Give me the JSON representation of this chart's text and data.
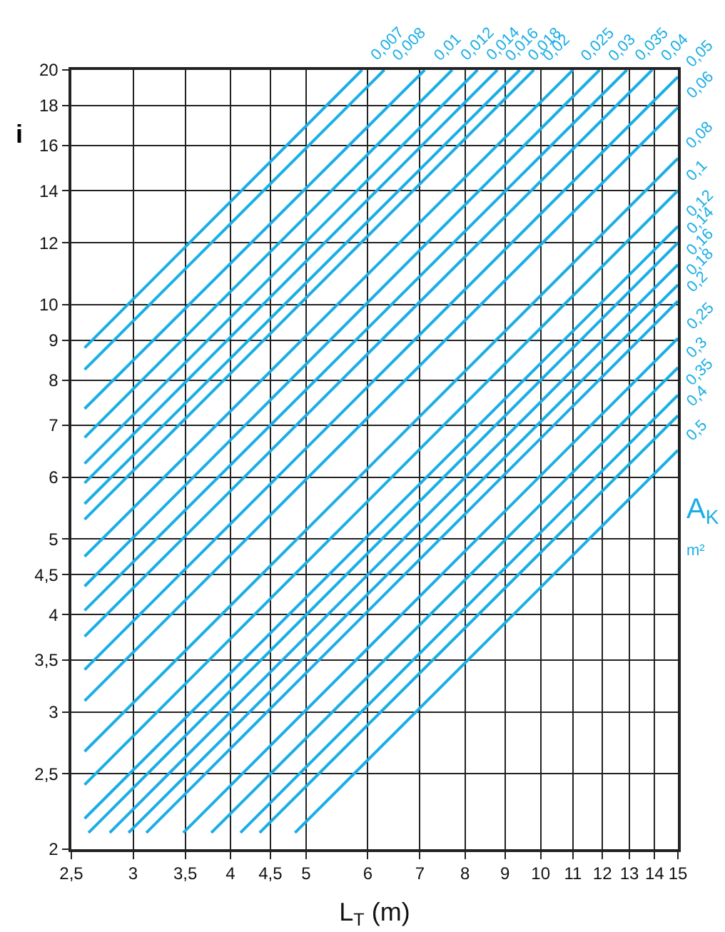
{
  "chart_data": {
    "type": "line",
    "xlabel": "L$_{T}$ (m)",
    "ylabel": "i",
    "legend_title": "A$_{K}$ m²",
    "log": "xy",
    "grid": true,
    "legend": false,
    "marker": "none",
    "line_style": "solid",
    "xlim": [
      2.5,
      15
    ],
    "ylim": [
      2,
      20
    ],
    "xticks": [
      {
        "value": 2.5,
        "label": "2,5"
      },
      3,
      {
        "value": 3.5,
        "label": "3,5"
      },
      4,
      {
        "value": 4.5,
        "label": "4,5"
      },
      5,
      6,
      7,
      8,
      9,
      10,
      11,
      12,
      13,
      14,
      15
    ],
    "yticks": [
      2,
      {
        "value": 2.5,
        "label": "2,5"
      },
      3,
      {
        "value": 3.5,
        "label": "3,5"
      },
      4,
      {
        "value": 4.5,
        "label": "4,5"
      },
      5,
      6,
      7,
      8,
      9,
      10,
      12,
      14,
      16,
      18,
      20
    ],
    "series": [
      {
        "name": "0,007",
        "color": "#1aaee5",
        "x": [
          2.6,
          5.9
        ],
        "values": [
          8.8,
          20
        ]
      },
      {
        "name": "0,008",
        "color": "#1aaee5",
        "x": [
          2.6,
          6.3
        ],
        "values": [
          8.25,
          20
        ]
      },
      {
        "name": "0,01",
        "color": "#1aaee5",
        "x": [
          2.6,
          7.1
        ],
        "values": [
          7.35,
          20
        ]
      },
      {
        "name": "0,012",
        "color": "#1aaee5",
        "x": [
          2.6,
          7.7
        ],
        "values": [
          6.75,
          20
        ]
      },
      {
        "name": "0,014",
        "color": "#1aaee5",
        "x": [
          2.6,
          8.3
        ],
        "values": [
          6.25,
          20
        ]
      },
      {
        "name": "0,016",
        "color": "#1aaee5",
        "x": [
          2.6,
          8.8
        ],
        "values": [
          5.9,
          20
        ]
      },
      {
        "name": "0,018",
        "color": "#1aaee5",
        "x": [
          2.6,
          9.4
        ],
        "values": [
          5.55,
          20
        ]
      },
      {
        "name": "0,02",
        "color": "#1aaee5",
        "x": [
          2.6,
          9.8
        ],
        "values": [
          5.3,
          20
        ]
      },
      {
        "name": "0,025",
        "color": "#1aaee5",
        "x": [
          2.6,
          11
        ],
        "values": [
          4.75,
          20
        ]
      },
      {
        "name": "0,03",
        "color": "#1aaee5",
        "x": [
          2.6,
          11.9
        ],
        "values": [
          4.35,
          20
        ]
      },
      {
        "name": "0,035",
        "color": "#1aaee5",
        "x": [
          2.6,
          12.9
        ],
        "values": [
          4.05,
          20
        ]
      },
      {
        "name": "0,04",
        "color": "#1aaee5",
        "x": [
          2.6,
          13.9
        ],
        "values": [
          3.75,
          20
        ]
      },
      {
        "name": "0,05",
        "color": "#1aaee5",
        "x": [
          2.6,
          15
        ],
        "values": [
          3.4,
          19.6
        ]
      },
      {
        "name": "0,06",
        "color": "#1aaee5",
        "x": [
          2.6,
          15
        ],
        "values": [
          3.1,
          17.9
        ]
      },
      {
        "name": "0,08",
        "color": "#1aaee5",
        "x": [
          2.6,
          15
        ],
        "values": [
          2.67,
          15.4
        ]
      },
      {
        "name": "0,1",
        "color": "#1aaee5",
        "x": [
          2.6,
          15
        ],
        "values": [
          2.42,
          14
        ]
      },
      {
        "name": "0,12",
        "color": "#1aaee5",
        "x": [
          2.6,
          15
        ],
        "values": [
          2.19,
          12.6
        ]
      },
      {
        "name": "0,14",
        "color": "#1aaee5",
        "x": [
          2.63,
          15
        ],
        "values": [
          2.1,
          12
        ]
      },
      {
        "name": "0,16",
        "color": "#1aaee5",
        "x": [
          2.8,
          15
        ],
        "values": [
          2.1,
          11.25
        ]
      },
      {
        "name": "0,18",
        "color": "#1aaee5",
        "x": [
          2.96,
          15
        ],
        "values": [
          2.1,
          10.6
        ]
      },
      {
        "name": "0,2",
        "color": "#1aaee5",
        "x": [
          3.12,
          15
        ],
        "values": [
          2.1,
          10.1
        ]
      },
      {
        "name": "0,25",
        "color": "#1aaee5",
        "x": [
          3.48,
          15
        ],
        "values": [
          2.1,
          9.05
        ]
      },
      {
        "name": "0,3",
        "color": "#1aaee5",
        "x": [
          3.78,
          15
        ],
        "values": [
          2.1,
          8.3
        ]
      },
      {
        "name": "0,35",
        "color": "#1aaee5",
        "x": [
          4.12,
          15
        ],
        "values": [
          2.1,
          7.65
        ]
      },
      {
        "name": "0,4",
        "color": "#1aaee5",
        "x": [
          4.36,
          15
        ],
        "values": [
          2.1,
          7.2
        ]
      },
      {
        "name": "0,5",
        "color": "#1aaee5",
        "x": [
          4.84,
          15
        ],
        "values": [
          2.1,
          6.5
        ]
      }
    ]
  }
}
